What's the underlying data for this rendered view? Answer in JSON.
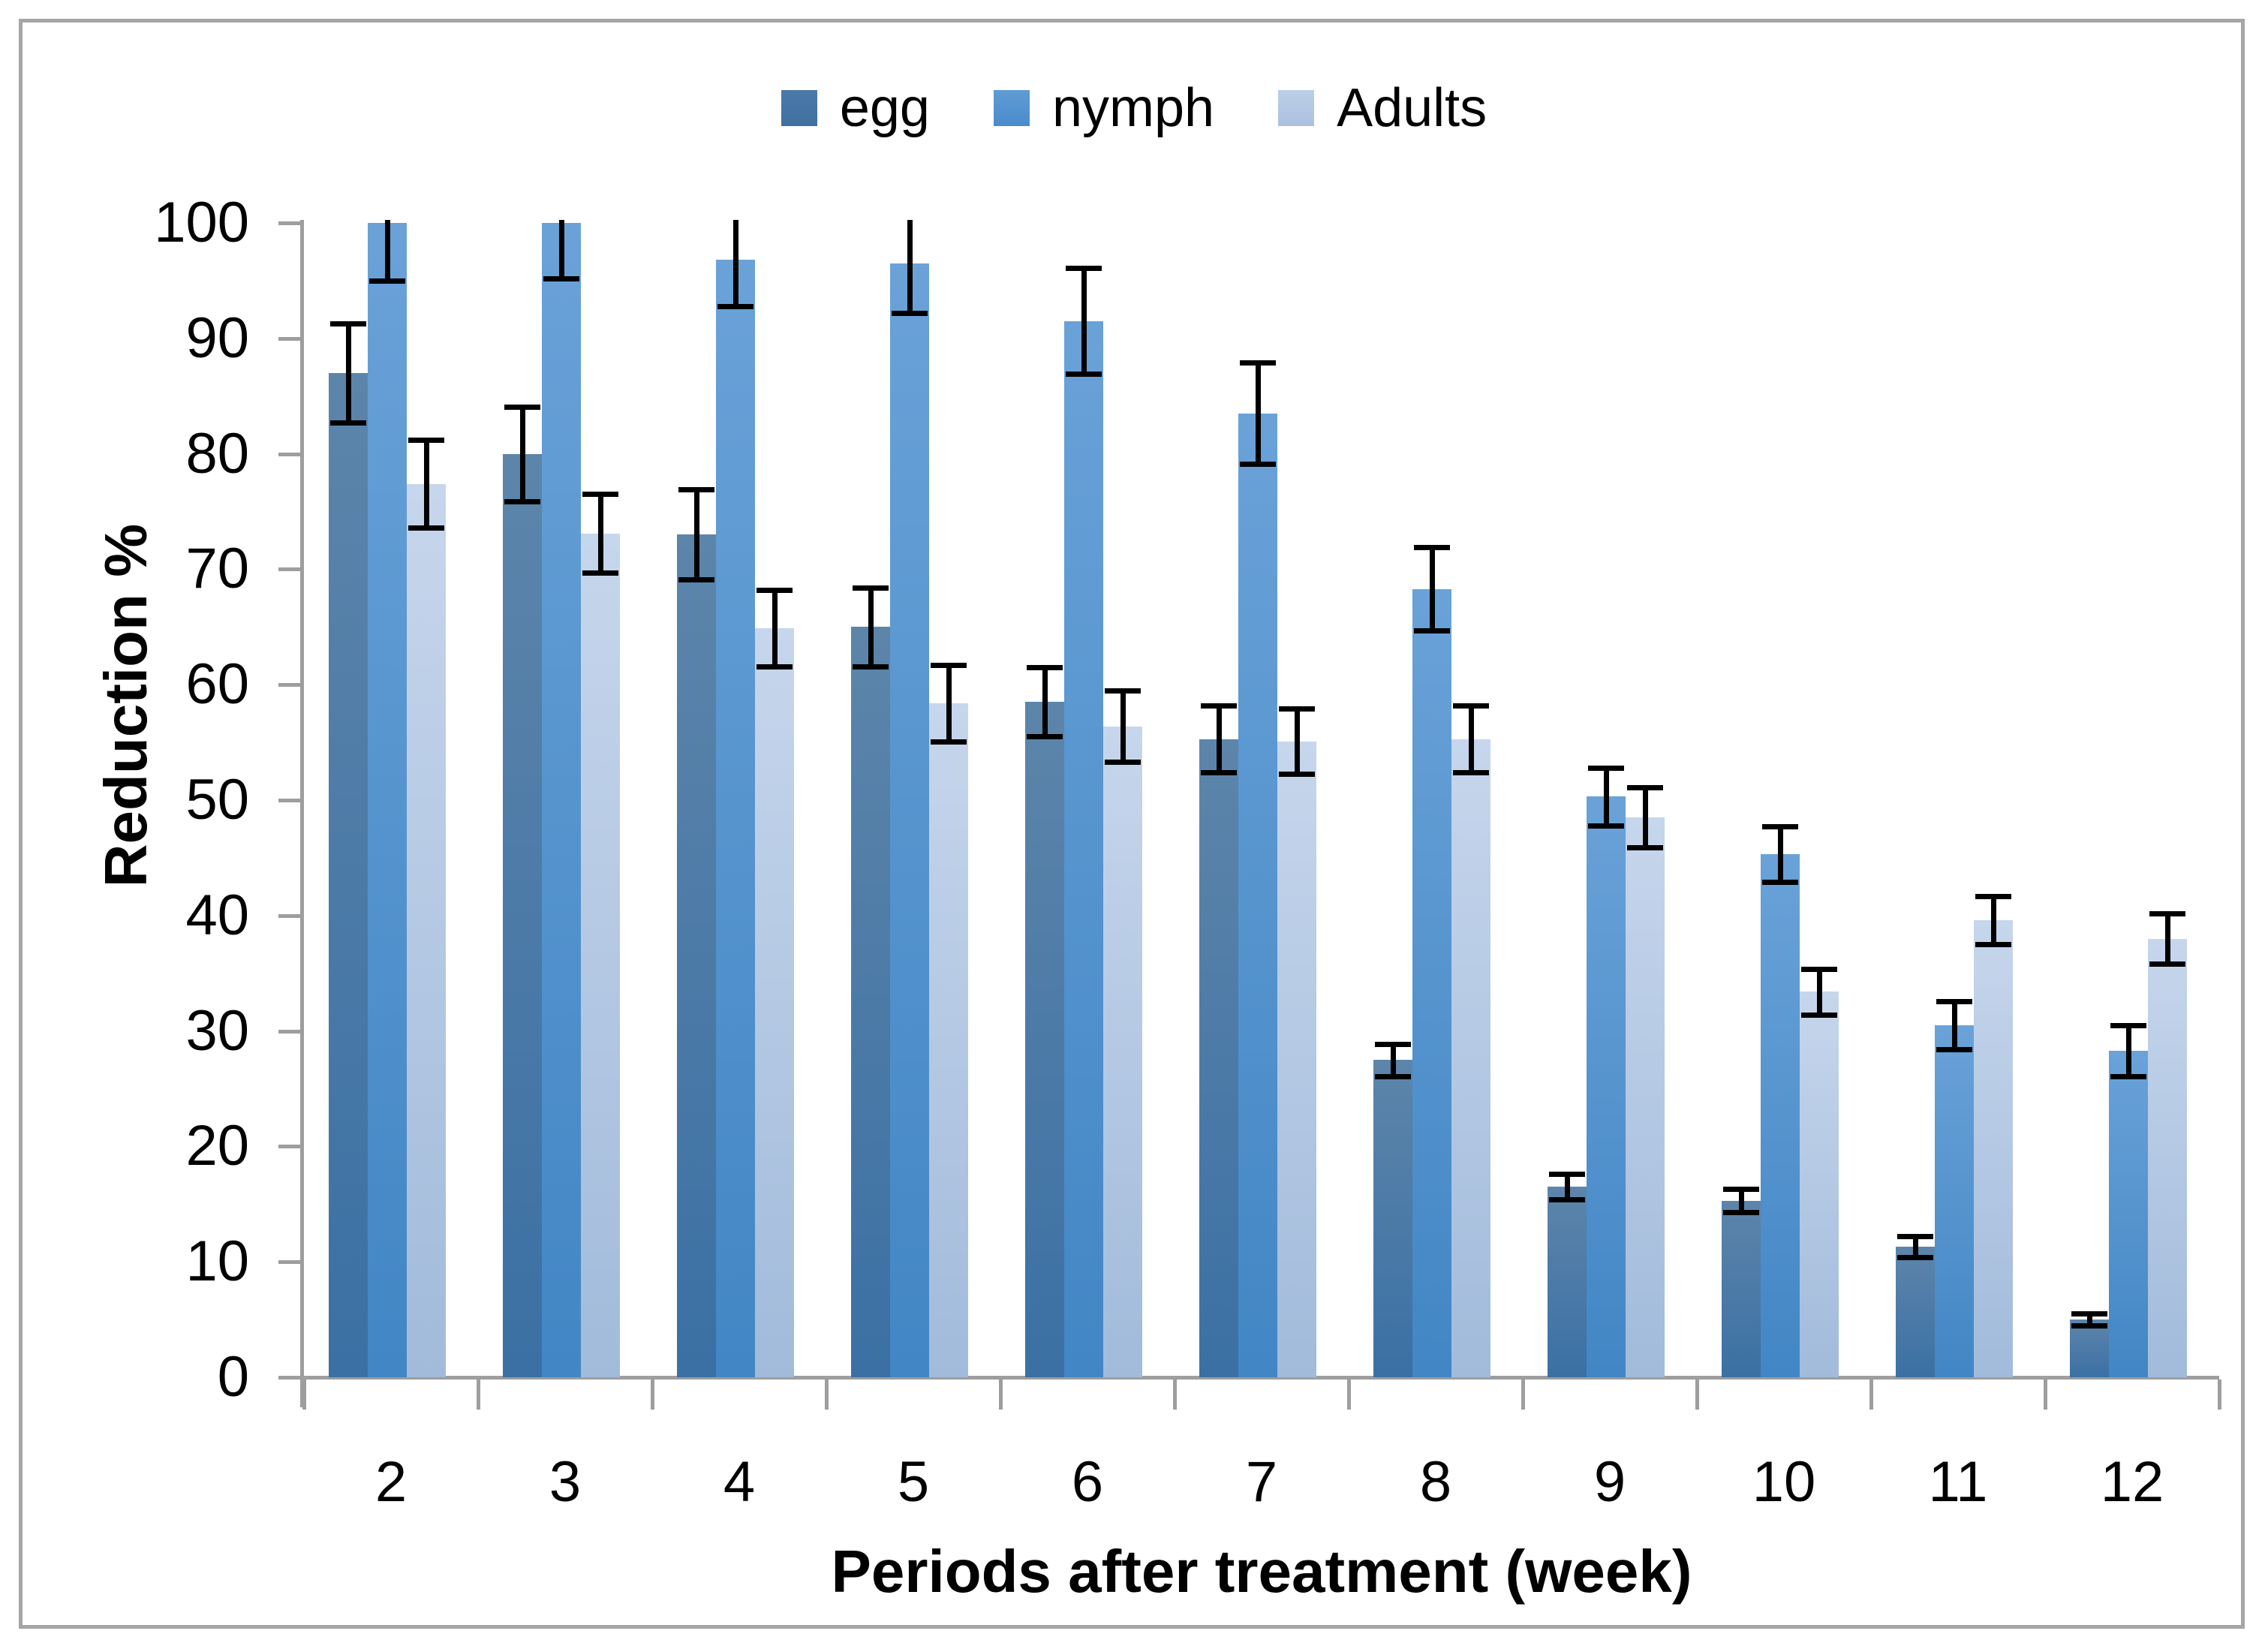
{
  "chart_data": {
    "type": "bar",
    "title": "",
    "categories": [
      "2",
      "3",
      "4",
      "5",
      "6",
      "7",
      "8",
      "9",
      "10",
      "11",
      "12"
    ],
    "xlabel": "Periods after treatment (week)",
    "ylabel": "Reduction %",
    "ylim": [
      0,
      100
    ],
    "y_ticks": [
      0,
      10,
      20,
      30,
      40,
      50,
      60,
      70,
      80,
      90,
      100
    ],
    "grid": false,
    "legend_position": "top",
    "has_error_bars": true,
    "error_bar_color": "#000000",
    "axis_color": "#9e9e9e",
    "series": [
      {
        "name": "egg",
        "values": [
          87,
          80,
          73,
          65,
          58.5,
          55.3,
          27.5,
          16.5,
          15.3,
          11.3,
          5
        ],
        "errors": [
          4.3,
          4.1,
          3.9,
          3.4,
          3.0,
          2.9,
          1.4,
          1.1,
          1.0,
          0.9,
          0.5
        ],
        "color_top": "#5d85aa",
        "color_bottom": "#3b70a4"
      },
      {
        "name": "nymph",
        "values": [
          100,
          100,
          96.8,
          96.5,
          91.5,
          83.5,
          68.3,
          50.3,
          45.3,
          30.5,
          28.3
        ],
        "errors": [
          5.0,
          4.8,
          4.0,
          4.3,
          4.6,
          4.4,
          3.6,
          2.5,
          2.4,
          2.1,
          2.2
        ],
        "color_top": "#6aa2d8",
        "color_bottom": "#4286c5"
      },
      {
        "name": "Adults",
        "values": [
          77.4,
          73.1,
          64.9,
          58.4,
          56.4,
          55.1,
          55.3,
          48.5,
          33.4,
          39.6,
          38
        ],
        "errors": [
          3.8,
          3.4,
          3.3,
          3.3,
          3.1,
          2.8,
          2.9,
          2.6,
          2.0,
          2.1,
          2.2
        ],
        "color_top": "#c6d6ec",
        "color_bottom": "#a2bbdb"
      }
    ]
  }
}
